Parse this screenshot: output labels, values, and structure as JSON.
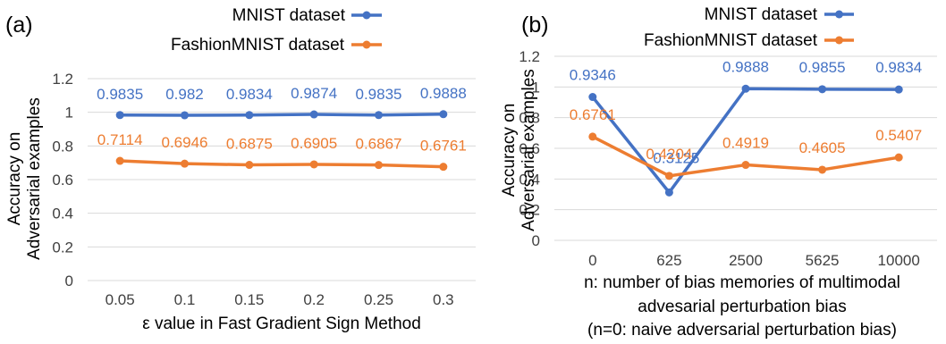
{
  "colors": {
    "mnist": "#4472C4",
    "fashion": "#ED7D31",
    "grid": "#D9D9D9",
    "text": "#404040",
    "label": "#000000"
  },
  "chart_data": [
    {
      "panel": "(a)",
      "type": "line",
      "categories": [
        "0.05",
        "0.1",
        "0.15",
        "0.2",
        "0.25",
        "0.3"
      ],
      "series": [
        {
          "name": "MNIST dataset",
          "values": [
            0.9835,
            0.982,
            0.9834,
            0.9874,
            0.9835,
            0.9888
          ],
          "labels": [
            "0.9835",
            "0.982",
            "0.9834",
            "0.9874",
            "0.9835",
            "0.9888"
          ]
        },
        {
          "name": "FashionMNIST dataset",
          "values": [
            0.7114,
            0.6946,
            0.6875,
            0.6905,
            0.6867,
            0.6761
          ],
          "labels": [
            "0.7114",
            "0.6946",
            "0.6875",
            "0.6905",
            "0.6867",
            "0.6761"
          ]
        }
      ],
      "ylabel_lines": [
        "Accuracy on",
        "Adversarial examples"
      ],
      "xlabel_lines": [
        "ε value in Fast Gradient Sign Method"
      ],
      "ylim": [
        0,
        1.2
      ],
      "yticks": [
        0,
        0.2,
        0.4,
        0.6,
        0.8,
        1,
        1.2
      ],
      "ytick_labels": [
        "0",
        "0.2",
        "0.4",
        "0.6",
        "0.8",
        "1",
        "1.2"
      ],
      "grid": true,
      "legend": "top"
    },
    {
      "panel": "(b)",
      "type": "line",
      "categories": [
        "0",
        "625",
        "2500",
        "5625",
        "10000"
      ],
      "series": [
        {
          "name": "MNIST dataset",
          "values": [
            0.9346,
            0.3125,
            0.9888,
            0.9855,
            0.9834
          ],
          "labels": [
            "0.9346",
            "0.3125",
            "0.9888",
            "0.9855",
            "0.9834"
          ]
        },
        {
          "name": "FashionMNIST dataset",
          "values": [
            0.6761,
            0.4204,
            0.4919,
            0.4605,
            0.5407
          ],
          "labels": [
            "0.6761",
            "0.4204",
            "0.4919",
            "0.4605",
            "0.5407"
          ]
        }
      ],
      "ylabel_lines": [
        "Accuracy on",
        "Adversarial examples"
      ],
      "xlabel_lines": [
        "n: number of bias memories of multimodal",
        "advesarial perturbation bias",
        "(n=0: naive adversarial perturbation bias)"
      ],
      "ylim": [
        0,
        1.2
      ],
      "yticks": [
        0,
        0.2,
        0.4,
        0.6,
        0.8,
        1,
        1.2
      ],
      "ytick_labels": [
        "0",
        "0.2",
        "0.4",
        "0.6",
        "0.8",
        "1",
        "1.2"
      ],
      "grid": true,
      "legend": "top"
    }
  ]
}
